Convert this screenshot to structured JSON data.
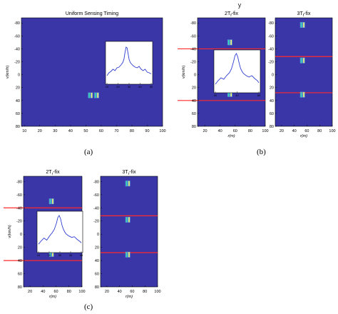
{
  "page": {
    "top_fragment": "y",
    "labels": {
      "a": "(a)",
      "b": "(b)",
      "c": "(c)"
    }
  },
  "colors": {
    "background": "#3a36a8",
    "axis_frame": "#000000",
    "threshold_line": "#ff2a2a",
    "inset_line": "#2f3fd0",
    "target_hot": "#ffff66",
    "target_warm": "#33ddaa",
    "target_cool": "#66ccff"
  },
  "chart_data": [
    {
      "type": "heatmap",
      "id": "a",
      "title": "Uniform Sensing Timing",
      "xlabel": "",
      "ylabel": "v(km/h)",
      "xlim": [
        8,
        100
      ],
      "ylim": [
        -88,
        80
      ],
      "xticks": [
        10,
        20,
        30,
        40,
        50,
        60,
        70,
        80,
        90,
        100
      ],
      "yticks": [
        -80,
        -60,
        -40,
        -20,
        0,
        20,
        40,
        60,
        80
      ],
      "targets": [
        {
          "x": 53,
          "y": 32
        },
        {
          "x": 57,
          "y": 32
        }
      ],
      "thresholds": [],
      "inset": {
        "xticks": [
          10,
          20,
          30,
          40,
          50
        ],
        "x": [
          8,
          10,
          12,
          14,
          16,
          18,
          20,
          22,
          24,
          25,
          26,
          27,
          28,
          29,
          30,
          31,
          32,
          34,
          36,
          38,
          40,
          42,
          44,
          46,
          48,
          50,
          52
        ],
        "y": [
          0.12,
          0.2,
          0.24,
          0.3,
          0.26,
          0.34,
          0.36,
          0.42,
          0.5,
          0.6,
          0.78,
          0.92,
          0.9,
          0.74,
          0.58,
          0.5,
          0.46,
          0.4,
          0.36,
          0.34,
          0.38,
          0.3,
          0.26,
          0.3,
          0.22,
          0.2,
          0.17
        ]
      }
    },
    {
      "type": "heatmap",
      "id": "b1",
      "title": "2T_f-fix",
      "xlabel": "r(m)",
      "ylabel": "v(km/h)",
      "xlim": [
        10,
        100
      ],
      "ylim": [
        -88,
        80
      ],
      "xticks": [
        20,
        40,
        60,
        80,
        100
      ],
      "yticks": [
        -80,
        -60,
        -40,
        -20,
        0,
        20,
        40,
        60,
        80
      ],
      "targets": [
        {
          "x": 53,
          "y": -50
        },
        {
          "x": 53,
          "y": 30
        }
      ],
      "thresholds": [
        -40,
        40
      ],
      "inset": {
        "xticks": [
          20,
          40,
          60
        ],
        "x": [
          8,
          12,
          16,
          20,
          24,
          28,
          31,
          34,
          36,
          38,
          40,
          42,
          44,
          46,
          48,
          52,
          56,
          60,
          64,
          68,
          70
        ],
        "y": [
          0.12,
          0.22,
          0.3,
          0.26,
          0.36,
          0.44,
          0.55,
          0.76,
          0.92,
          0.98,
          0.88,
          0.7,
          0.56,
          0.48,
          0.42,
          0.36,
          0.32,
          0.36,
          0.28,
          0.22,
          0.16
        ]
      }
    },
    {
      "type": "heatmap",
      "id": "b2",
      "title": "3T_f-fix",
      "xlabel": "r(m)",
      "ylabel": "",
      "xlim": [
        10,
        100
      ],
      "ylim": [
        -88,
        80
      ],
      "xticks": [
        20,
        40,
        60,
        80,
        100
      ],
      "yticks": [
        -80,
        -60,
        -40,
        -20,
        0,
        20,
        40,
        60,
        80
      ],
      "targets": [
        {
          "x": 53,
          "y": -77
        },
        {
          "x": 53,
          "y": -22
        },
        {
          "x": 53,
          "y": 31
        }
      ],
      "thresholds": [
        -28,
        28
      ],
      "inset": null
    },
    {
      "type": "heatmap",
      "id": "c1",
      "title": "2T_r-fix",
      "xlabel": "r(m)",
      "ylabel": "v(km/h)",
      "xlim": [
        10,
        100
      ],
      "ylim": [
        -88,
        80
      ],
      "xticks": [
        20,
        40,
        60,
        80,
        100
      ],
      "yticks": [
        -80,
        -60,
        -40,
        -20,
        0,
        20,
        40,
        60,
        80
      ],
      "targets": [
        {
          "x": 53,
          "y": -50
        },
        {
          "x": 53,
          "y": 30
        }
      ],
      "thresholds": [
        -40,
        40
      ],
      "inset": {
        "xticks": [
          10,
          20,
          30,
          40,
          50
        ],
        "x": [
          8,
          12,
          16,
          20,
          24,
          28,
          31,
          34,
          36,
          38,
          40,
          42,
          44,
          46,
          48,
          52,
          56,
          60,
          64,
          68,
          70
        ],
        "y": [
          0.12,
          0.22,
          0.3,
          0.24,
          0.36,
          0.46,
          0.56,
          0.74,
          0.9,
          0.96,
          0.86,
          0.68,
          0.56,
          0.48,
          0.42,
          0.36,
          0.32,
          0.34,
          0.26,
          0.2,
          0.16
        ]
      }
    },
    {
      "type": "heatmap",
      "id": "c2",
      "title": "3T_r-fix",
      "xlabel": "r(m)",
      "ylabel": "",
      "xlim": [
        10,
        100
      ],
      "ylim": [
        -88,
        80
      ],
      "xticks": [
        20,
        40,
        60,
        80,
        100
      ],
      "yticks": [
        -80,
        -60,
        -40,
        -20,
        0,
        20,
        40,
        60,
        80
      ],
      "targets": [
        {
          "x": 53,
          "y": -77
        },
        {
          "x": 53,
          "y": -22
        },
        {
          "x": 53,
          "y": 31
        }
      ],
      "thresholds": [
        -28,
        28
      ],
      "inset": null
    }
  ]
}
